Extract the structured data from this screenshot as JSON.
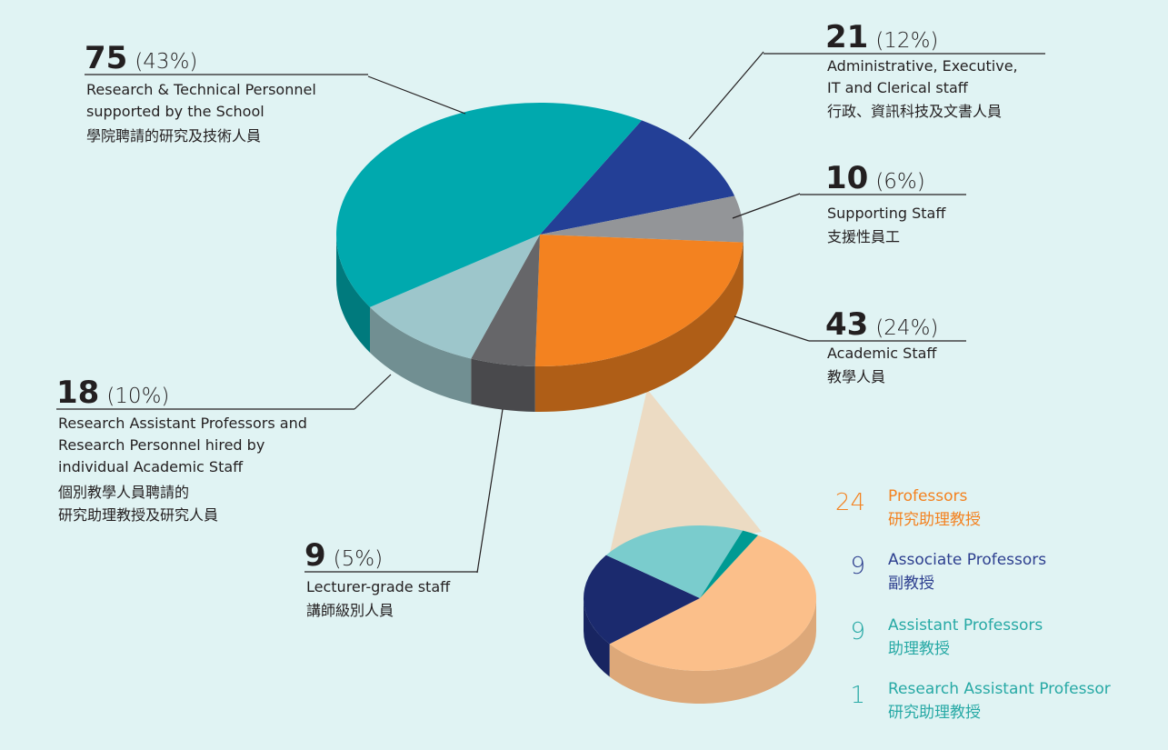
{
  "chart_data": [
    {
      "type": "pie3d",
      "values": [
        21,
        10,
        43,
        9,
        18,
        75
      ],
      "percent_labels": [
        "(12%)",
        "(6%)",
        "(24%)",
        "(5%)",
        "(10%)",
        "(43%)"
      ],
      "colors": [
        "#233f96",
        "#939598",
        "#f38220",
        "#666669",
        "#9dc6cb",
        "#00a9ae"
      ],
      "categories": [
        [
          "Administrative, Executive,",
          "IT and Clerical staff",
          "行政、資訊科技及文書人員"
        ],
        [
          "Supporting Staff",
          "支援性員工"
        ],
        [
          "Academic Staff",
          "教學人員"
        ],
        [
          "Lecturer-grade staff",
          "講師級別人員"
        ],
        [
          "Research Assistant Professors and",
          "Research Personnel hired by",
          "individual Academic Staff",
          "個別教學人員聘請的",
          "研究助理教授及研究人員"
        ],
        [
          "Research & Technical Personnel",
          "supported by the School",
          "學院聘請的研究及技術人員"
        ]
      ]
    },
    {
      "type": "pie3d",
      "values": [
        24,
        9,
        9,
        1
      ],
      "colors": [
        "#fbbf8a",
        "#1b2a6e",
        "#7acccd",
        "#009a93"
      ],
      "label_colors": [
        "#f38220",
        "#27a9a5",
        "#2d3f8f",
        "#27a9a5"
      ],
      "categories": [
        [
          "Professors",
          "研究助理教授"
        ],
        [
          "Assistant Professors",
          "助理教授"
        ],
        [
          "Associate Professors",
          "副教授"
        ],
        [
          "Research Assistant Professor",
          "研究助理教授"
        ]
      ]
    }
  ]
}
